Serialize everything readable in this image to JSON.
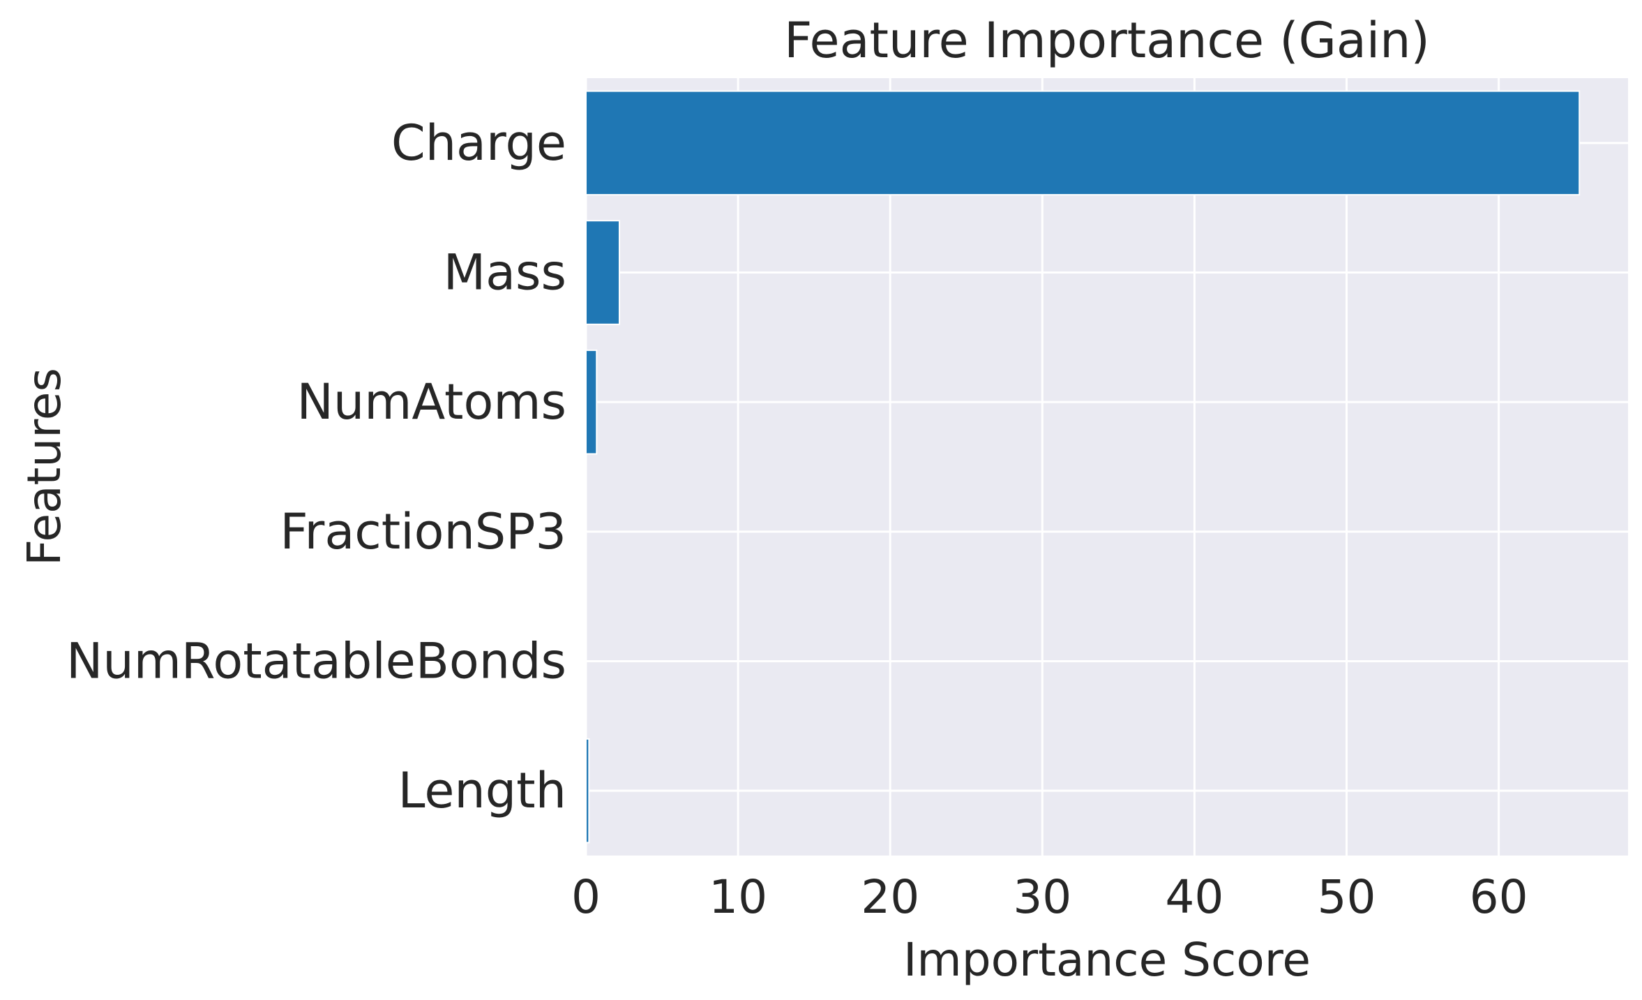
{
  "chart_data": {
    "type": "bar",
    "orientation": "horizontal",
    "title": "Feature Importance (Gain)",
    "xlabel": "Importance Score",
    "ylabel": "Features",
    "categories": [
      "Charge",
      "Mass",
      "NumAtoms",
      "FractionSP3",
      "NumRotatableBonds",
      "Length"
    ],
    "values": [
      65.3,
      2.2,
      0.7,
      0.0,
      0.0,
      0.2
    ],
    "xlim": [
      0,
      68.5
    ],
    "xticks": [
      0,
      10,
      20,
      30,
      40,
      50,
      60
    ],
    "grid": true,
    "legend": "none",
    "colors": {
      "bar": "#1f77b4",
      "plot_background": "#eaeaf2",
      "grid": "#ffffff",
      "text": "#262626"
    }
  }
}
